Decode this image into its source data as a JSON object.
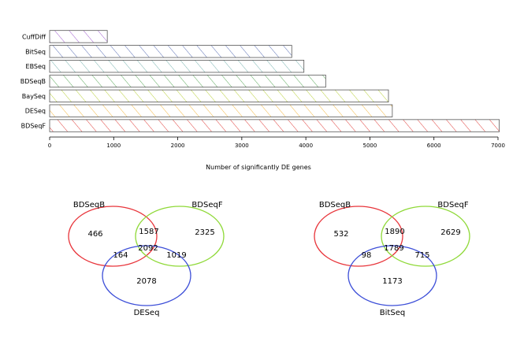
{
  "chart_data": [
    {
      "type": "bar",
      "orientation": "horizontal",
      "categories": [
        "CuffDiff",
        "BitSeq",
        "EBSeq",
        "BDSeqB",
        "BaySeq",
        "DESeq",
        "BDSeqF"
      ],
      "values": [
        900,
        3780,
        3970,
        4310,
        5290,
        5350,
        7020
      ],
      "colors": [
        "#a05ccf",
        "#5a6fb5",
        "#78b3b0",
        "#5aa85a",
        "#b8d03a",
        "#f3b640",
        "#e0403c"
      ],
      "fill_pattern": "diagonal hatch",
      "xlabel": "Number of significantly DE genes",
      "xticks": [
        "0",
        "1000",
        "2000",
        "3000",
        "4000",
        "5000",
        "6000",
        "7000"
      ],
      "xlim": [
        0,
        7000
      ],
      "grid": false
    },
    {
      "type": "venn",
      "sets": [
        {
          "name": "BDSeqB",
          "color": "#e8353b"
        },
        {
          "name": "BDSeqF",
          "color": "#8fd938"
        },
        {
          "name": "DESeq",
          "color": "#3d4fd8"
        }
      ],
      "regions": {
        "a_only": "466",
        "b_only": "2325",
        "c_only": "2078",
        "ab": "1587",
        "ac": "164",
        "bc": "1019",
        "abc": "2092"
      }
    },
    {
      "type": "venn",
      "sets": [
        {
          "name": "BDSeqB",
          "color": "#e8353b"
        },
        {
          "name": "BDSeqF",
          "color": "#8fd938"
        },
        {
          "name": "BitSeq",
          "color": "#3d4fd8"
        }
      ],
      "regions": {
        "a_only": "532",
        "b_only": "2629",
        "c_only": "1173",
        "ab": "1890",
        "ac": "98",
        "bc": "715",
        "abc": "1789"
      }
    }
  ]
}
